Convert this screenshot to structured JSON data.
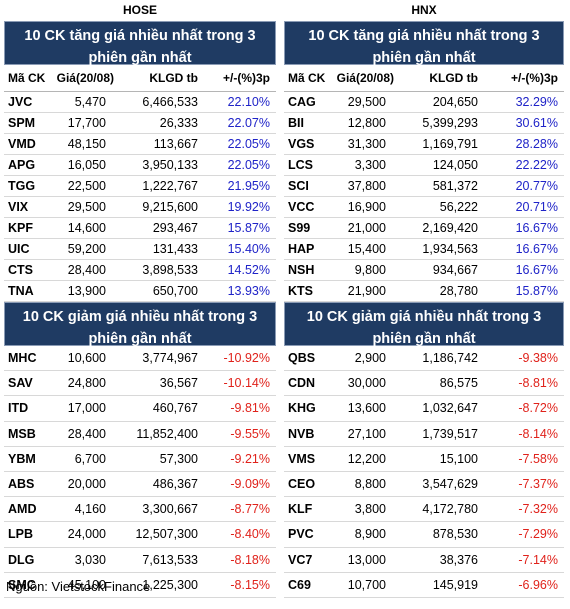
{
  "hose": {
    "exchange": "HOSE",
    "gainers_title": "10 CK tăng giá nhiều nhất trong 3 phiên gần nhất",
    "losers_title": "10 CK giảm giá nhiều nhất trong 3 phiên gần nhất",
    "columns": [
      "Mã CK",
      "Giá(20/08)",
      "KLGD tb",
      "+/-(%)3p"
    ],
    "gainers": [
      {
        "code": "JVC",
        "price": "5,470",
        "volume": "6,466,533",
        "change": "22.10%"
      },
      {
        "code": "SPM",
        "price": "17,700",
        "volume": "26,333",
        "change": "22.07%"
      },
      {
        "code": "VMD",
        "price": "48,150",
        "volume": "113,667",
        "change": "22.05%"
      },
      {
        "code": "APG",
        "price": "16,050",
        "volume": "3,950,133",
        "change": "22.05%"
      },
      {
        "code": "TGG",
        "price": "22,500",
        "volume": "1,222,767",
        "change": "21.95%"
      },
      {
        "code": "VIX",
        "price": "29,500",
        "volume": "9,215,600",
        "change": "19.92%"
      },
      {
        "code": "KPF",
        "price": "14,600",
        "volume": "293,467",
        "change": "15.87%"
      },
      {
        "code": "UIC",
        "price": "59,200",
        "volume": "131,433",
        "change": "15.40%"
      },
      {
        "code": "CTS",
        "price": "28,400",
        "volume": "3,898,533",
        "change": "14.52%"
      },
      {
        "code": "TNA",
        "price": "13,900",
        "volume": "650,700",
        "change": "13.93%"
      }
    ],
    "losers": [
      {
        "code": "MHC",
        "price": "10,600",
        "volume": "3,774,967",
        "change": "-10.92%"
      },
      {
        "code": "SAV",
        "price": "24,800",
        "volume": "36,567",
        "change": "-10.14%"
      },
      {
        "code": "ITD",
        "price": "17,000",
        "volume": "460,767",
        "change": "-9.81%"
      },
      {
        "code": "MSB",
        "price": "28,400",
        "volume": "11,852,400",
        "change": "-9.55%"
      },
      {
        "code": "YBM",
        "price": "6,700",
        "volume": "57,300",
        "change": "-9.21%"
      },
      {
        "code": "ABS",
        "price": "20,000",
        "volume": "486,367",
        "change": "-9.09%"
      },
      {
        "code": "AMD",
        "price": "4,160",
        "volume": "3,300,667",
        "change": "-8.77%"
      },
      {
        "code": "LPB",
        "price": "24,000",
        "volume": "12,507,300",
        "change": "-8.40%"
      },
      {
        "code": "DLG",
        "price": "3,030",
        "volume": "7,613,533",
        "change": "-8.18%"
      },
      {
        "code": "SMC",
        "price": "45,100",
        "volume": "1,225,300",
        "change": "-8.15%"
      }
    ]
  },
  "hnx": {
    "exchange": "HNX",
    "gainers_title": "10 CK tăng giá nhiều nhất trong 3 phiên gần nhất",
    "losers_title": "10 CK giảm giá nhiều nhất trong 3 phiên gần nhất",
    "columns": [
      "Mã CK",
      "Giá(20/08)",
      "KLGD tb",
      "+/-(%)3p"
    ],
    "gainers": [
      {
        "code": "CAG",
        "price": "29,500",
        "volume": "204,650",
        "change": "32.29%"
      },
      {
        "code": "BII",
        "price": "12,800",
        "volume": "5,399,293",
        "change": "30.61%"
      },
      {
        "code": "VGS",
        "price": "31,300",
        "volume": "1,169,791",
        "change": "28.28%"
      },
      {
        "code": "LCS",
        "price": "3,300",
        "volume": "124,050",
        "change": "22.22%"
      },
      {
        "code": "SCI",
        "price": "37,800",
        "volume": "581,372",
        "change": "20.77%"
      },
      {
        "code": "VCC",
        "price": "16,900",
        "volume": "56,222",
        "change": "20.71%"
      },
      {
        "code": "S99",
        "price": "21,000",
        "volume": "2,169,420",
        "change": "16.67%"
      },
      {
        "code": "HAP",
        "price": "15,400",
        "volume": "1,934,563",
        "change": "16.67%"
      },
      {
        "code": "NSH",
        "price": "9,800",
        "volume": "934,667",
        "change": "16.67%"
      },
      {
        "code": "KTS",
        "price": "21,900",
        "volume": "28,780",
        "change": "15.87%"
      }
    ],
    "losers": [
      {
        "code": "QBS",
        "price": "2,900",
        "volume": "1,186,742",
        "change": "-9.38%"
      },
      {
        "code": "CDN",
        "price": "30,000",
        "volume": "86,575",
        "change": "-8.81%"
      },
      {
        "code": "KHG",
        "price": "13,600",
        "volume": "1,032,647",
        "change": "-8.72%"
      },
      {
        "code": "NVB",
        "price": "27,100",
        "volume": "1,739,517",
        "change": "-8.14%"
      },
      {
        "code": "VMS",
        "price": "12,200",
        "volume": "15,100",
        "change": "-7.58%"
      },
      {
        "code": "CEO",
        "price": "8,800",
        "volume": "3,547,629",
        "change": "-7.37%"
      },
      {
        "code": "KLF",
        "price": "3,800",
        "volume": "4,172,780",
        "change": "-7.32%"
      },
      {
        "code": "PVC",
        "price": "8,900",
        "volume": "878,530",
        "change": "-7.29%"
      },
      {
        "code": "VC7",
        "price": "13,000",
        "volume": "38,376",
        "change": "-7.14%"
      },
      {
        "code": "C69",
        "price": "10,700",
        "volume": "145,919",
        "change": "-6.96%"
      }
    ]
  },
  "footer": {
    "source": "Nguồn: VietstockFinance"
  },
  "colors": {
    "header_bg": "#1f3b63",
    "up": "#1f23c8",
    "down": "#e0221b"
  }
}
